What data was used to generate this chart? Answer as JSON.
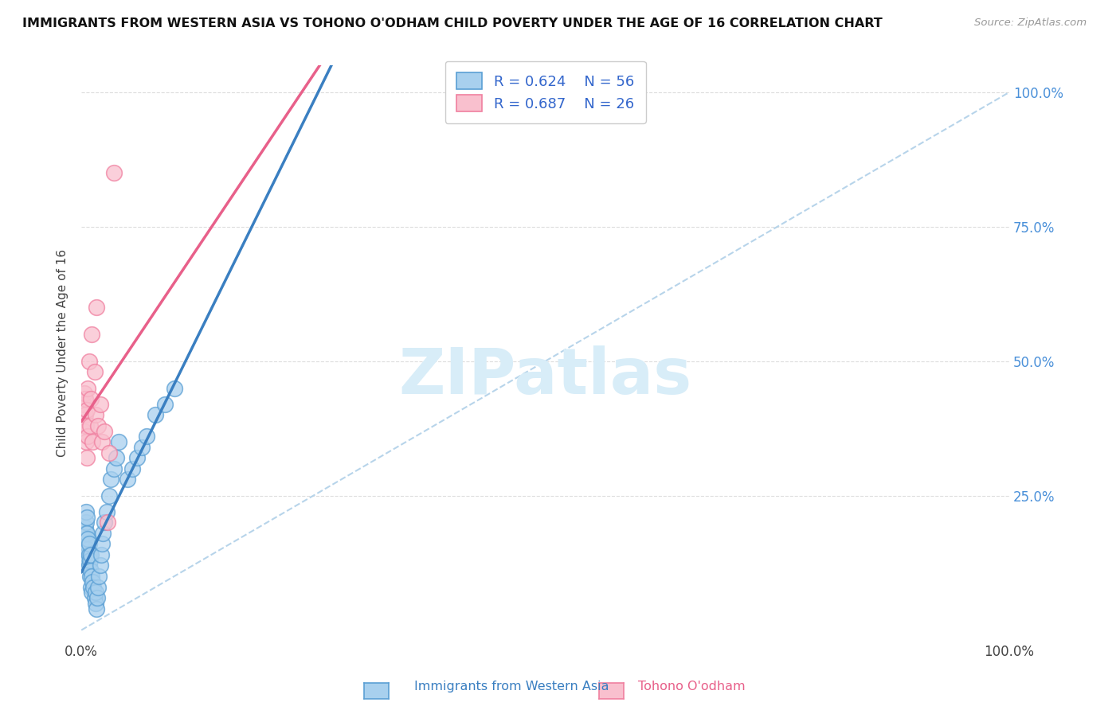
{
  "title": "IMMIGRANTS FROM WESTERN ASIA VS TOHONO O'ODHAM CHILD POVERTY UNDER THE AGE OF 16 CORRELATION CHART",
  "source": "Source: ZipAtlas.com",
  "ylabel": "Child Poverty Under the Age of 16",
  "legend_label1": "Immigrants from Western Asia",
  "legend_label2": "Tohono O'odham",
  "R1": 0.624,
  "N1": 56,
  "R2": 0.687,
  "N2": 26,
  "color_blue_fill": "#a8d0ee",
  "color_pink_fill": "#f9c0ce",
  "color_blue_edge": "#5a9fd4",
  "color_pink_edge": "#f080a0",
  "color_blue_line": "#3a7fc1",
  "color_pink_line": "#e8608a",
  "color_dashed": "#b0d0e8",
  "watermark_color": "#d8edf8",
  "blue_x": [
    0.002,
    0.003,
    0.003,
    0.004,
    0.004,
    0.004,
    0.005,
    0.005,
    0.005,
    0.005,
    0.005,
    0.006,
    0.006,
    0.006,
    0.006,
    0.007,
    0.007,
    0.007,
    0.008,
    0.008,
    0.008,
    0.009,
    0.009,
    0.01,
    0.01,
    0.01,
    0.011,
    0.011,
    0.012,
    0.013,
    0.014,
    0.015,
    0.015,
    0.016,
    0.017,
    0.018,
    0.019,
    0.02,
    0.021,
    0.022,
    0.023,
    0.025,
    0.027,
    0.03,
    0.032,
    0.035,
    0.038,
    0.04,
    0.05,
    0.055,
    0.06,
    0.065,
    0.07,
    0.08,
    0.09,
    0.1
  ],
  "blue_y": [
    0.17,
    0.16,
    0.18,
    0.15,
    0.17,
    0.19,
    0.14,
    0.16,
    0.18,
    0.2,
    0.22,
    0.14,
    0.16,
    0.18,
    0.21,
    0.13,
    0.15,
    0.17,
    0.12,
    0.14,
    0.16,
    0.1,
    0.13,
    0.08,
    0.11,
    0.14,
    0.07,
    0.1,
    0.09,
    0.08,
    0.06,
    0.05,
    0.07,
    0.04,
    0.06,
    0.08,
    0.1,
    0.12,
    0.14,
    0.16,
    0.18,
    0.2,
    0.22,
    0.25,
    0.28,
    0.3,
    0.32,
    0.35,
    0.28,
    0.3,
    0.32,
    0.34,
    0.36,
    0.4,
    0.42,
    0.45
  ],
  "pink_x": [
    0.002,
    0.003,
    0.003,
    0.004,
    0.004,
    0.005,
    0.005,
    0.006,
    0.006,
    0.007,
    0.007,
    0.008,
    0.009,
    0.01,
    0.011,
    0.012,
    0.014,
    0.015,
    0.016,
    0.018,
    0.02,
    0.022,
    0.025,
    0.028,
    0.03,
    0.035
  ],
  "pink_y": [
    0.42,
    0.37,
    0.44,
    0.4,
    0.43,
    0.35,
    0.38,
    0.32,
    0.41,
    0.36,
    0.45,
    0.5,
    0.38,
    0.43,
    0.55,
    0.35,
    0.48,
    0.4,
    0.6,
    0.38,
    0.42,
    0.35,
    0.37,
    0.2,
    0.33,
    0.85
  ],
  "xlim": [
    0.0,
    1.0
  ],
  "ylim": [
    -0.02,
    1.05
  ],
  "ytick_positions": [
    0.0,
    0.25,
    0.5,
    0.75,
    1.0
  ],
  "ytick_labels_right": [
    "",
    "25.0%",
    "50.0%",
    "75.0%",
    "100.0%"
  ],
  "xtick_labels": [
    "0.0%",
    "",
    "",
    "",
    "100.0%"
  ],
  "background_color": "#ffffff",
  "grid_color": "#dddddd",
  "watermark": "ZIPatlas"
}
